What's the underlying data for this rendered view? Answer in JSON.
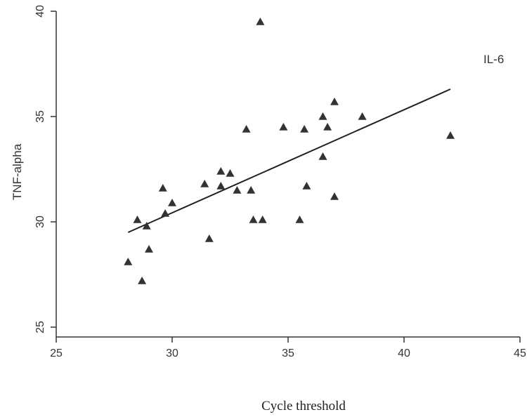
{
  "chart_data": {
    "type": "scatter",
    "title": "",
    "xlabel": "Cycle threshold",
    "ylabel": "TNF-alpha",
    "annotation": "IL-6",
    "xlim": [
      25,
      45
    ],
    "ylim": [
      25,
      40
    ],
    "xticks": [
      25,
      30,
      35,
      40,
      45
    ],
    "yticks": [
      25,
      30,
      35,
      40
    ],
    "grid": false,
    "marker": "triangle",
    "marker_color": "#333333",
    "points": [
      {
        "x": 28.1,
        "y": 28.1
      },
      {
        "x": 28.5,
        "y": 30.1
      },
      {
        "x": 28.7,
        "y": 27.2
      },
      {
        "x": 28.9,
        "y": 29.8
      },
      {
        "x": 29.0,
        "y": 28.7
      },
      {
        "x": 29.6,
        "y": 31.6
      },
      {
        "x": 29.7,
        "y": 30.4
      },
      {
        "x": 30.0,
        "y": 30.9
      },
      {
        "x": 31.4,
        "y": 31.8
      },
      {
        "x": 31.6,
        "y": 29.2
      },
      {
        "x": 32.1,
        "y": 32.4
      },
      {
        "x": 32.1,
        "y": 31.7
      },
      {
        "x": 32.5,
        "y": 32.3
      },
      {
        "x": 32.8,
        "y": 31.5
      },
      {
        "x": 33.2,
        "y": 34.4
      },
      {
        "x": 33.4,
        "y": 31.5
      },
      {
        "x": 33.5,
        "y": 30.1
      },
      {
        "x": 33.8,
        "y": 39.5
      },
      {
        "x": 33.9,
        "y": 30.1
      },
      {
        "x": 34.8,
        "y": 34.5
      },
      {
        "x": 35.5,
        "y": 30.1
      },
      {
        "x": 35.7,
        "y": 34.4
      },
      {
        "x": 35.8,
        "y": 31.7
      },
      {
        "x": 36.5,
        "y": 35.0
      },
      {
        "x": 36.5,
        "y": 33.1
      },
      {
        "x": 36.7,
        "y": 34.5
      },
      {
        "x": 37.0,
        "y": 35.7
      },
      {
        "x": 37.0,
        "y": 31.2
      },
      {
        "x": 38.2,
        "y": 35.0
      },
      {
        "x": 42.0,
        "y": 34.1
      }
    ],
    "trend_line": {
      "x": [
        28.1,
        42.0
      ],
      "y": [
        29.5,
        36.3
      ]
    }
  }
}
